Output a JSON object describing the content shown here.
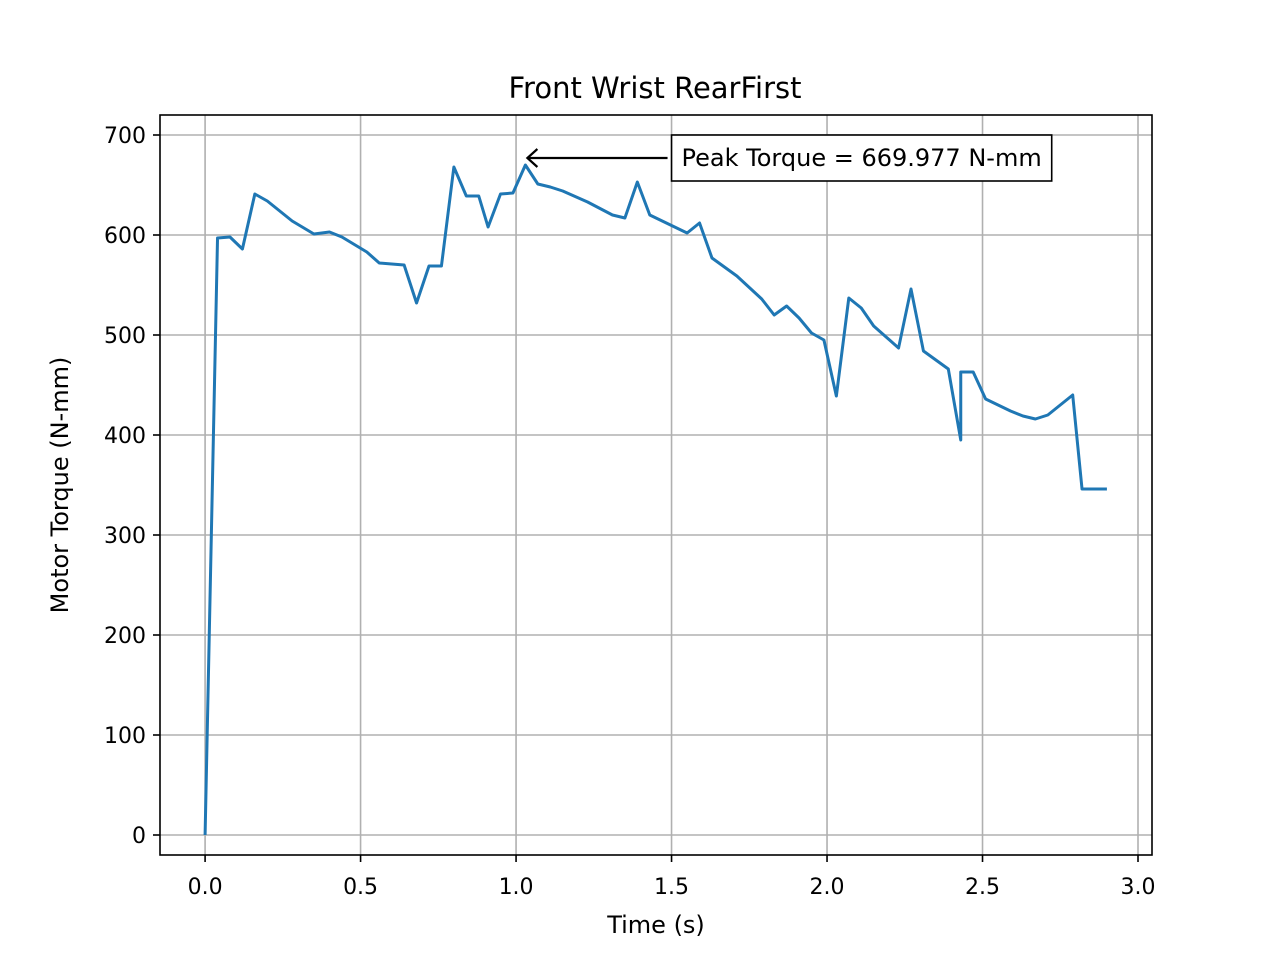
{
  "chart_data": {
    "type": "line",
    "title": "Front Wrist RearFirst",
    "xlabel": "Time (s)",
    "ylabel": "Motor Torque (N-mm)",
    "xlim": [
      -0.145,
      3.045
    ],
    "ylim": [
      -20,
      720
    ],
    "xticks": [
      0.0,
      0.5,
      1.0,
      1.5,
      2.0,
      2.5,
      3.0
    ],
    "xtick_labels": [
      "0.0",
      "0.5",
      "1.0",
      "1.5",
      "2.0",
      "2.5",
      "3.0"
    ],
    "yticks": [
      0,
      100,
      200,
      300,
      400,
      500,
      600,
      700
    ],
    "ytick_labels": [
      "0",
      "100",
      "200",
      "300",
      "400",
      "500",
      "600",
      "700"
    ],
    "grid": true,
    "colors": {
      "line": "#1f77b4"
    },
    "series": [
      {
        "x": [
          0.0,
          0.04,
          0.08,
          0.12,
          0.16,
          0.2,
          0.28,
          0.35,
          0.4,
          0.44,
          0.52,
          0.56,
          0.6,
          0.64,
          0.68,
          0.72,
          0.76,
          0.8,
          0.84,
          0.88,
          0.91,
          0.95,
          0.99,
          1.03,
          1.07,
          1.11,
          1.15,
          1.23,
          1.31,
          1.35,
          1.39,
          1.43,
          1.51,
          1.55,
          1.59,
          1.63,
          1.71,
          1.79,
          1.83,
          1.87,
          1.91,
          1.95,
          1.99,
          2.03,
          2.07,
          2.11,
          2.15,
          2.19,
          2.23,
          2.27,
          2.31,
          2.35,
          2.39,
          2.43,
          2.43,
          2.47,
          2.51,
          2.59,
          2.63,
          2.67,
          2.71,
          2.79,
          2.82,
          2.86,
          2.9
        ],
        "values": [
          0,
          597,
          598,
          586,
          641,
          634,
          614,
          601,
          603,
          598,
          583,
          572,
          571,
          570,
          532,
          569,
          569,
          668,
          639,
          639,
          608,
          641,
          642,
          670,
          651,
          648,
          644,
          633,
          620,
          617,
          653,
          620,
          608,
          602,
          612,
          577,
          559,
          536,
          520,
          529,
          517,
          502,
          495,
          439,
          537,
          527,
          509,
          498,
          487,
          546,
          484,
          475,
          466,
          395,
          463,
          463,
          436,
          424,
          419,
          416,
          420,
          440,
          346,
          346,
          346
        ]
      }
    ],
    "annotations": [
      {
        "text": "Peak Torque = 669.977 N-mm",
        "target_x": 1.03,
        "target_y": 677,
        "text_x": 1.5,
        "text_y": 677
      }
    ]
  }
}
